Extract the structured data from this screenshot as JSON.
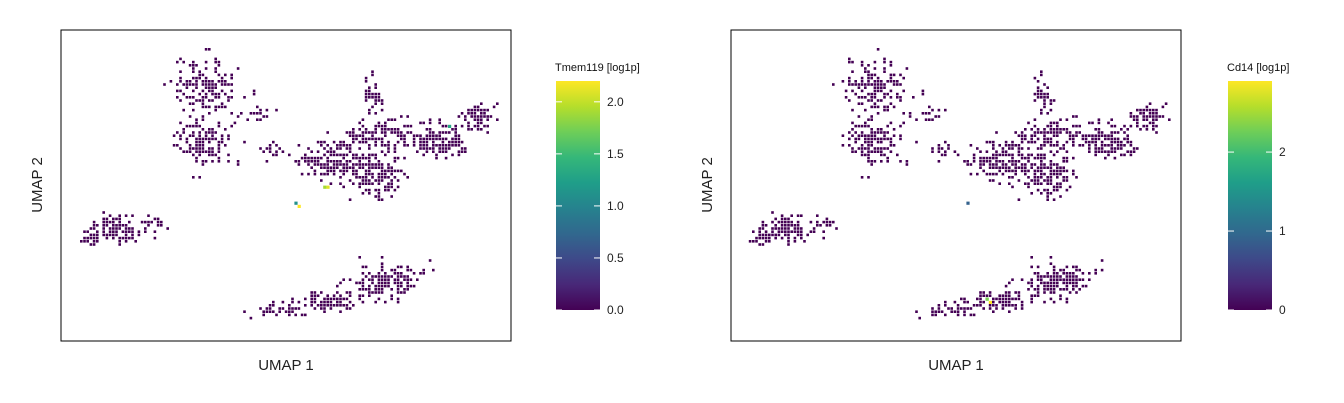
{
  "chart_data": [
    {
      "type": "scatter",
      "title": "",
      "xlabel": "UMAP 1",
      "ylabel": "UMAP 2",
      "colorbar": {
        "title": "Tmem119 [log1p]",
        "range": [
          0,
          2.2
        ],
        "ticks": [
          "0.0",
          "0.5",
          "1.0",
          "1.5",
          "2.0"
        ],
        "tick_values": [
          0,
          0.5,
          1.0,
          1.5,
          2.0
        ],
        "colormap": "viridis"
      },
      "xlim": [
        0,
        100
      ],
      "ylim": [
        0,
        70
      ],
      "grid": false,
      "highlights": [
        {
          "x": 59.5,
          "y": 35.0,
          "value": 2.1
        },
        {
          "x": 58.8,
          "y": 34.6,
          "value": 1.9
        },
        {
          "x": 52.0,
          "y": 30.5,
          "value": 1.1
        },
        {
          "x": 52.5,
          "y": 30.0,
          "value": 2.2
        },
        {
          "x": 87.8,
          "y": 49.5,
          "value": 1.3
        }
      ]
    },
    {
      "type": "scatter",
      "title": "",
      "xlabel": "UMAP 1",
      "ylabel": "UMAP 2",
      "colorbar": {
        "title": "Cd14 [log1p]",
        "range": [
          0,
          2.9
        ],
        "ticks": [
          "0",
          "1",
          "2"
        ],
        "tick_values": [
          0,
          1,
          2
        ],
        "colormap": "viridis"
      },
      "xlim": [
        0,
        100
      ],
      "ylim": [
        0,
        70
      ],
      "grid": false,
      "highlights": [
        {
          "x": 52.0,
          "y": 30.5,
          "value": 0.9
        },
        {
          "x": 57.8,
          "y": 7.0,
          "value": 2.9
        },
        {
          "x": 56.8,
          "y": 7.4,
          "value": 2.3
        }
      ]
    }
  ],
  "clusters": [
    {
      "cx": 31.0,
      "cy": 59.0,
      "rx": 7.0,
      "ry": 6.0,
      "n": 150
    },
    {
      "cx": 30.0,
      "cy": 46.0,
      "rx": 6.0,
      "ry": 5.5,
      "n": 140
    },
    {
      "cx": 43.5,
      "cy": 52.0,
      "rx": 3.0,
      "ry": 1.5,
      "n": 18
    },
    {
      "cx": 47.0,
      "cy": 43.5,
      "rx": 3.0,
      "ry": 1.8,
      "n": 20
    },
    {
      "cx": 52.5,
      "cy": 40.5,
      "rx": 2.5,
      "ry": 1.0,
      "n": 8
    },
    {
      "cx": 61.0,
      "cy": 41.0,
      "rx": 7.0,
      "ry": 4.5,
      "n": 160
    },
    {
      "cx": 71.0,
      "cy": 37.5,
      "rx": 5.0,
      "ry": 5.0,
      "n": 130
    },
    {
      "cx": 72.0,
      "cy": 47.0,
      "rx": 8.0,
      "ry": 3.5,
      "n": 120
    },
    {
      "cx": 85.0,
      "cy": 46.0,
      "rx": 6.0,
      "ry": 4.0,
      "n": 150
    },
    {
      "cx": 95.0,
      "cy": 51.5,
      "rx": 3.5,
      "ry": 3.0,
      "n": 70
    },
    {
      "cx": 70.0,
      "cy": 56.5,
      "rx": 2.0,
      "ry": 3.5,
      "n": 35
    },
    {
      "cx": 9.5,
      "cy": 24.5,
      "rx": 5.5,
      "ry": 3.0,
      "n": 110
    },
    {
      "cx": 4.0,
      "cy": 22.0,
      "rx": 2.5,
      "ry": 1.5,
      "n": 25
    },
    {
      "cx": 19.0,
      "cy": 26.0,
      "rx": 2.5,
      "ry": 1.2,
      "n": 18
    },
    {
      "cx": 73.0,
      "cy": 12.0,
      "rx": 6.5,
      "ry": 4.0,
      "n": 150
    },
    {
      "cx": 60.5,
      "cy": 7.0,
      "rx": 8.0,
      "ry": 2.5,
      "n": 80
    },
    {
      "cx": 48.0,
      "cy": 5.0,
      "rx": 5.0,
      "ry": 1.5,
      "n": 35
    }
  ],
  "colors": {
    "viridis": [
      "#440154",
      "#482878",
      "#3e4989",
      "#31688e",
      "#26828e",
      "#1f9e89",
      "#35b779",
      "#6ece58",
      "#b5de2b",
      "#fde725"
    ],
    "point": "#440154",
    "frame": "#000000"
  }
}
